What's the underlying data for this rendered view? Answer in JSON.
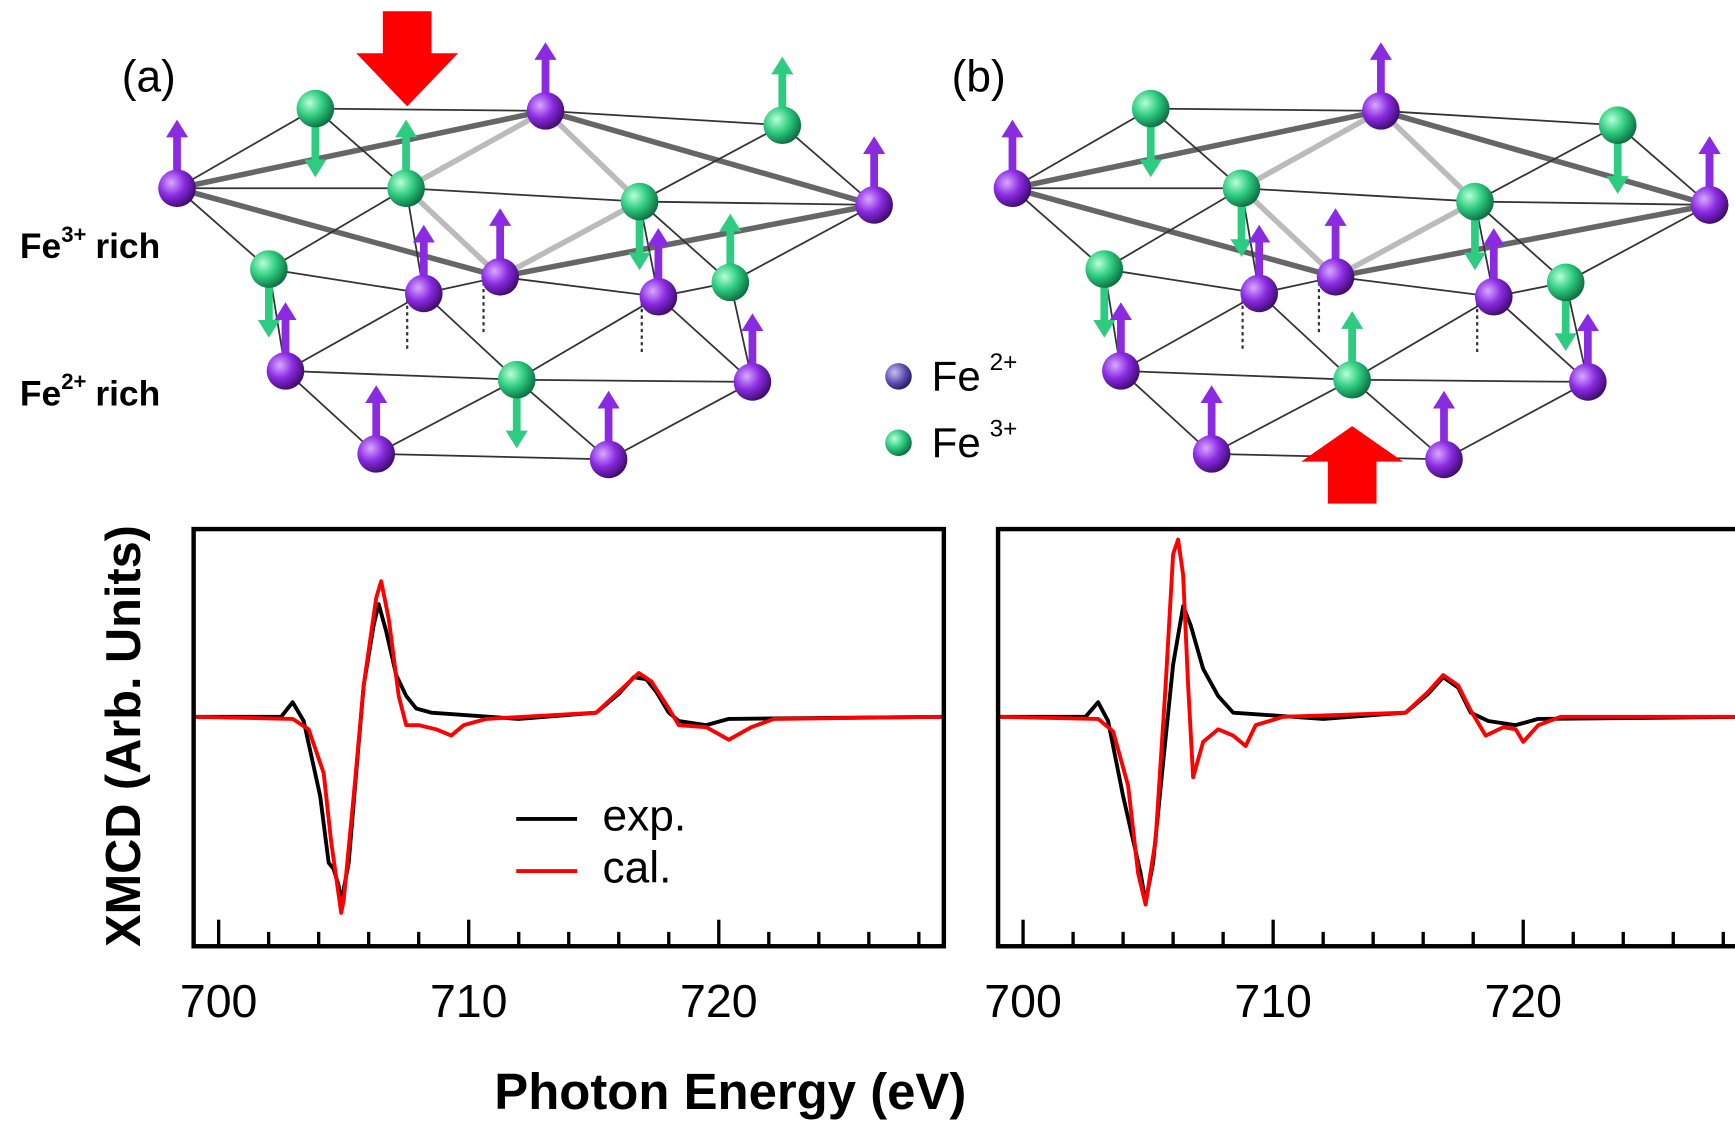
{
  "diagram": {
    "panel_labels": [
      "(a)",
      "(b)"
    ],
    "layers": [
      {
        "ion": "Fe",
        "charge": "3+",
        "label": "rich"
      },
      {
        "ion": "Fe",
        "charge": "2+",
        "label": "rich"
      }
    ],
    "ion_legend": [
      {
        "ion": "Fe",
        "charge": "2+"
      },
      {
        "ion": "Fe",
        "charge": "3+"
      }
    ]
  },
  "chart_data": [
    {
      "type": "line",
      "xlabel": "Photon Energy (eV)",
      "ylabel": "XMCD (Arb. Units)",
      "xlim": [
        699,
        729
      ],
      "ylim": [
        -1.1,
        0.9
      ],
      "xticks": [
        700,
        710,
        720
      ],
      "minor_xticks": [
        702,
        704,
        706,
        708,
        712,
        714,
        716,
        718,
        722,
        724,
        726,
        728
      ],
      "legend": "lower center",
      "series": [
        {
          "name": "exp.",
          "color": "#000000",
          "x": [
            699,
            702.5,
            702.96,
            703.4,
            704.06,
            704.4,
            704.6,
            704.8,
            704.9,
            705.2,
            705.5,
            705.8,
            706.2,
            706.4,
            706.7,
            707.1,
            707.5,
            707.9,
            708.5,
            712,
            715.1,
            716,
            716.6,
            717.1,
            717.5,
            718,
            718.4,
            719.5,
            720.4,
            729
          ],
          "values": [
            0,
            0,
            0.07,
            -0.02,
            -0.38,
            -0.7,
            -0.73,
            -0.81,
            -0.89,
            -0.7,
            -0.27,
            0.15,
            0.44,
            0.54,
            0.41,
            0.2,
            0.1,
            0.04,
            0.02,
            -0.01,
            0.02,
            0.11,
            0.19,
            0.18,
            0.12,
            0.02,
            -0.02,
            -0.04,
            -0.01,
            0
          ]
        },
        {
          "name": "cal.",
          "color": "#ff0000",
          "x": [
            699,
            702.96,
            703.6,
            704.2,
            704.5,
            704.9,
            705.0,
            705.4,
            705.8,
            706.3,
            706.5,
            706.8,
            707.2,
            707.5,
            708,
            708.7,
            709.3,
            709.8,
            710.7,
            715.1,
            716,
            716.8,
            717.3,
            718,
            718.4,
            719.5,
            720.4,
            721.3,
            722.2,
            729
          ],
          "values": [
            0,
            -0.01,
            -0.06,
            -0.27,
            -0.6,
            -0.94,
            -0.88,
            -0.38,
            0.15,
            0.57,
            0.65,
            0.47,
            0.1,
            -0.04,
            -0.04,
            -0.06,
            -0.09,
            -0.04,
            -0.01,
            0.02,
            0.12,
            0.21,
            0.17,
            0.04,
            -0.04,
            -0.05,
            -0.11,
            -0.05,
            -0.01,
            0
          ]
        }
      ]
    },
    {
      "type": "line",
      "xlim": [
        699,
        729
      ],
      "ylim": [
        -1.1,
        0.9
      ],
      "xticks": [
        700,
        710,
        720
      ],
      "minor_xticks": [
        702,
        704,
        706,
        708,
        712,
        714,
        716,
        718,
        722,
        724,
        726,
        728
      ],
      "series": [
        {
          "color": "#000000",
          "x": [
            699,
            702.5,
            703.0,
            703.4,
            704.0,
            704.7,
            704.9,
            705.2,
            705.6,
            706.0,
            706.4,
            706.7,
            707.2,
            707.8,
            708.4,
            712,
            715.3,
            716.2,
            716.8,
            717.4,
            717.9,
            718.6,
            719.7,
            720.6,
            729
          ],
          "values": [
            0,
            0,
            0.07,
            -0.02,
            -0.38,
            -0.75,
            -0.89,
            -0.7,
            -0.22,
            0.25,
            0.53,
            0.44,
            0.23,
            0.1,
            0.02,
            -0.01,
            0.02,
            0.11,
            0.19,
            0.14,
            0.02,
            -0.02,
            -0.04,
            -0.01,
            0
          ]
        },
        {
          "color": "#ff0000",
          "x": [
            699,
            703.0,
            703.6,
            704.2,
            704.6,
            704.9,
            705.3,
            705.7,
            706.0,
            706.2,
            706.4,
            706.6,
            706.8,
            707.2,
            707.8,
            708.4,
            708.9,
            709.3,
            710.4,
            715.3,
            716.2,
            716.8,
            717.4,
            717.9,
            718.5,
            719.2,
            719.7,
            720.0,
            720.6,
            721.5,
            729
          ],
          "values": [
            0,
            -0.01,
            -0.07,
            -0.33,
            -0.75,
            -0.9,
            -0.59,
            0.15,
            0.78,
            0.85,
            0.68,
            0.15,
            -0.29,
            -0.12,
            -0.06,
            -0.09,
            -0.14,
            -0.04,
            0,
            0.02,
            0.12,
            0.2,
            0.15,
            0.03,
            -0.09,
            -0.05,
            -0.06,
            -0.12,
            -0.04,
            0,
            0
          ]
        }
      ]
    }
  ]
}
